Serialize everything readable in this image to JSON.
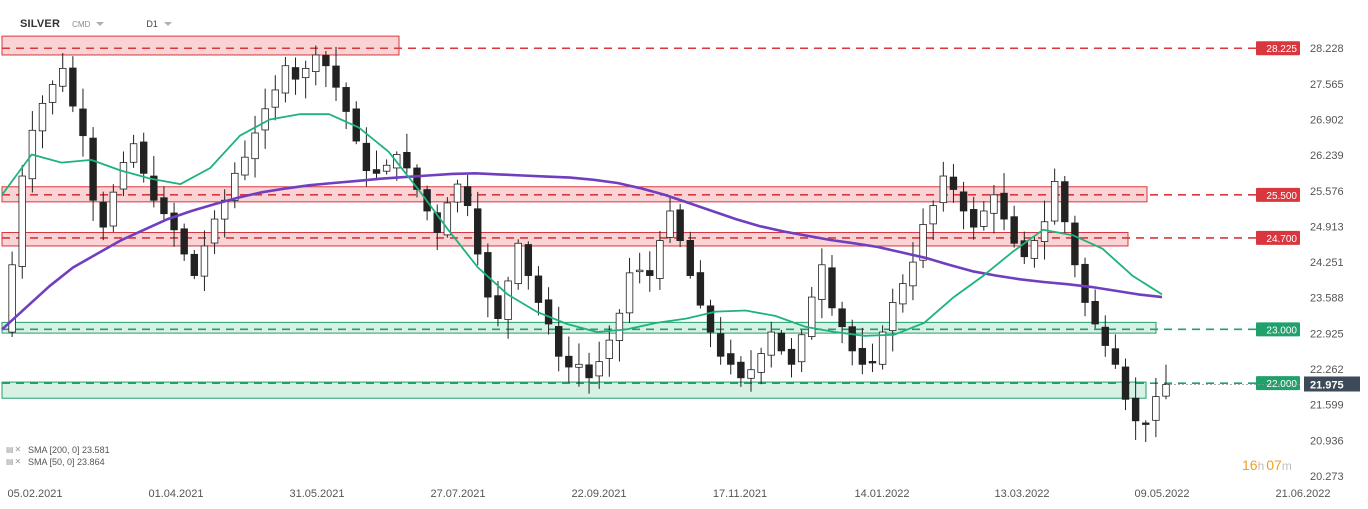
{
  "header": {
    "symbol": "SILVER",
    "market": "CMD",
    "interval": "D1"
  },
  "legend": [
    {
      "label": "SMA [200, 0]",
      "value": "23.581"
    },
    {
      "label": "SMA [50, 0]",
      "value": "23.864"
    }
  ],
  "countdown": {
    "hours": "16",
    "hours_unit": "h",
    "minutes": "07",
    "minutes_unit": "m"
  },
  "colors": {
    "up": "#ffffff",
    "down": "#222222",
    "wick": "#222222",
    "sma200": "#6f3fbf",
    "sma50": "#1db37a",
    "resistance": "#d9363e",
    "support": "#22a06b",
    "price_tag": "#3d4a57",
    "axis_text": "#555555"
  },
  "chart_data": {
    "type": "candlestick",
    "title": "SILVER",
    "xlabel": "",
    "ylabel": "",
    "ylim": [
      20.2,
      28.75
    ],
    "y_ticks": [
      "28.228",
      "27.565",
      "26.902",
      "26.239",
      "25.576",
      "24.913",
      "24.251",
      "23.588",
      "22.925",
      "22.262",
      "21.599",
      "20.936",
      "20.273"
    ],
    "x_ticks": [
      "05.02.2021",
      "01.04.2021",
      "31.05.2021",
      "27.07.2021",
      "22.09.2021",
      "17.11.2021",
      "14.01.2022",
      "13.03.2022",
      "09.05.2022",
      "21.06.2022"
    ],
    "last_price": "21.975",
    "close_series": [
      22.95,
      24.2,
      25.85,
      26.7,
      27.2,
      27.55,
      27.85,
      27.15,
      26.6,
      25.4,
      24.9,
      25.55,
      26.1,
      26.45,
      25.9,
      25.4,
      25.15,
      24.85,
      24.4,
      24.0,
      24.55,
      25.05,
      25.4,
      25.9,
      26.2,
      26.65,
      27.1,
      27.45,
      27.9,
      27.65,
      27.85,
      28.1,
      27.9,
      27.5,
      27.05,
      26.5,
      25.95,
      25.9,
      26.05,
      26.25,
      26.0,
      25.6,
      25.2,
      24.8,
      25.35,
      25.7,
      25.3,
      24.4,
      23.6,
      23.2,
      23.9,
      24.6,
      24.0,
      23.5,
      23.1,
      22.5,
      22.3,
      22.35,
      22.1,
      22.4,
      22.8,
      23.3,
      24.05,
      24.1,
      24.0,
      24.65,
      25.2,
      24.65,
      24.0,
      23.45,
      22.95,
      22.5,
      22.35,
      22.1,
      22.25,
      22.55,
      22.95,
      22.6,
      22.35,
      22.9,
      23.6,
      24.2,
      23.4,
      23.05,
      22.6,
      22.35,
      22.4,
      22.95,
      23.5,
      23.85,
      24.25,
      24.95,
      25.3,
      25.85,
      25.6,
      25.2,
      24.9,
      25.2,
      25.5,
      25.05,
      24.6,
      24.35,
      24.65,
      25.0,
      25.75,
      25.0,
      24.2,
      23.5,
      23.1,
      22.7,
      22.35,
      21.7,
      21.3,
      21.25,
      21.75,
      21.975
    ],
    "series": [
      {
        "name": "SMA [200, 0]",
        "value": "23.581",
        "values": [
          23.0,
          23.4,
          23.8,
          24.15,
          24.4,
          24.65,
          24.85,
          25.05,
          25.2,
          25.33,
          25.45,
          25.55,
          25.62,
          25.68,
          25.72,
          25.76,
          25.8,
          25.83,
          25.86,
          25.89,
          25.9,
          25.88,
          25.86,
          25.84,
          25.82,
          25.78,
          25.72,
          25.62,
          25.5,
          25.35,
          25.2,
          25.05,
          24.92,
          24.82,
          24.74,
          24.66,
          24.6,
          24.53,
          24.43,
          24.33,
          24.2,
          24.08,
          24.0,
          23.93,
          23.88,
          23.84,
          23.79,
          23.72,
          23.65,
          23.6
        ]
      },
      {
        "name": "SMA [50, 0]",
        "value": "23.864",
        "values": [
          25.5,
          26.25,
          26.1,
          26.15,
          25.95,
          25.8,
          25.7,
          26.0,
          26.6,
          26.9,
          27.0,
          27.0,
          26.75,
          26.3,
          25.6,
          24.85,
          24.15,
          23.65,
          23.32,
          23.1,
          22.95,
          23.0,
          23.12,
          23.2,
          23.33,
          23.35,
          23.25,
          23.05,
          22.95,
          22.88,
          22.9,
          23.12,
          23.6,
          24.0,
          24.45,
          24.85,
          24.75,
          24.5,
          24.0,
          23.65
        ]
      }
    ],
    "zones": [
      {
        "kind": "resistance",
        "price": 28.225,
        "label": "28.225",
        "ylo": 28.1,
        "yhi": 28.45
      },
      {
        "kind": "resistance",
        "price": 25.5,
        "label": "25.500",
        "ylo": 25.37,
        "yhi": 25.65
      },
      {
        "kind": "resistance",
        "price": 24.7,
        "label": "24.700",
        "ylo": 24.55,
        "yhi": 24.8
      },
      {
        "kind": "support",
        "price": 23.0,
        "label": "23.000",
        "ylo": 22.93,
        "yhi": 23.13
      },
      {
        "kind": "support",
        "price": 22.0,
        "label": "22.000",
        "ylo": 21.72,
        "yhi": 22.02
      }
    ]
  }
}
